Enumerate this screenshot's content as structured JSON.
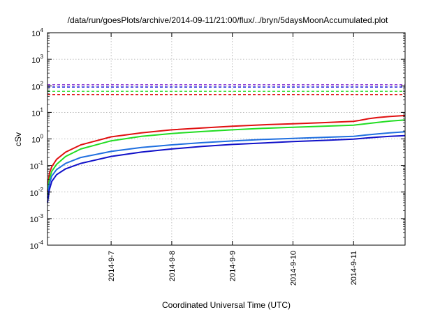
{
  "chart_data": {
    "type": "line",
    "title": "/data/run/goesPlots/archive/2014-09-11/21:00/flux/../bryn/5daysMoonAccumulated.plot",
    "xlabel": "Coordinated Universal Time (UTC)",
    "ylabel": "cSv",
    "y_scale": "log",
    "ylim": [
      0.0001,
      10000
    ],
    "y_ticks": [
      {
        "value": 0.0001,
        "base": "10",
        "exp": "-4"
      },
      {
        "value": 0.001,
        "base": "10",
        "exp": "-3"
      },
      {
        "value": 0.01,
        "base": "10",
        "exp": "-2"
      },
      {
        "value": 0.1,
        "base": "10",
        "exp": "-1"
      },
      {
        "value": 1,
        "base": "10",
        "exp": "0"
      },
      {
        "value": 10,
        "base": "10",
        "exp": "1"
      },
      {
        "value": 100,
        "base": "10",
        "exp": "2"
      },
      {
        "value": 1000,
        "base": "10",
        "exp": "3"
      },
      {
        "value": 10000,
        "base": "10",
        "exp": "4"
      }
    ],
    "xlim": [
      5.95,
      11.85
    ],
    "x_ticks": [
      {
        "value": 7,
        "label": "2014-9-7"
      },
      {
        "value": 8,
        "label": "2014-9-8"
      },
      {
        "value": 9,
        "label": "2014-9-9"
      },
      {
        "value": 10,
        "label": "2014-9-10"
      },
      {
        "value": 11,
        "label": "2014-9-11"
      }
    ],
    "grid": true,
    "legend": "none",
    "thresholds": [
      {
        "value": 110,
        "color": "#7f1fd0"
      },
      {
        "value": 90,
        "color": "#1a1adf"
      },
      {
        "value": 62,
        "color": "#22dd22"
      },
      {
        "value": 47,
        "color": "#e01010"
      }
    ],
    "series": [
      {
        "color": "#e01010",
        "x": [
          5.95,
          5.98,
          6.02,
          6.1,
          6.25,
          6.5,
          7.0,
          7.5,
          8.0,
          8.5,
          9.0,
          9.5,
          10.0,
          10.5,
          11.0,
          11.1,
          11.25,
          11.4,
          11.6,
          11.85
        ],
        "y": [
          0.01,
          0.05,
          0.09,
          0.17,
          0.32,
          0.6,
          1.2,
          1.7,
          2.2,
          2.6,
          3.0,
          3.4,
          3.7,
          4.1,
          4.6,
          5.0,
          5.8,
          6.4,
          7.0,
          7.6
        ]
      },
      {
        "color": "#22dd22",
        "x": [
          5.95,
          5.98,
          6.02,
          6.1,
          6.25,
          6.5,
          7.0,
          7.5,
          8.0,
          8.5,
          9.0,
          9.5,
          10.0,
          10.5,
          11.0,
          11.2,
          11.4,
          11.6,
          11.85
        ],
        "y": [
          0.008,
          0.03,
          0.06,
          0.11,
          0.22,
          0.42,
          0.85,
          1.25,
          1.6,
          1.9,
          2.2,
          2.5,
          2.75,
          3.0,
          3.3,
          3.7,
          4.2,
          4.7,
          5.2
        ]
      },
      {
        "color": "#1f6fe0",
        "x": [
          5.95,
          5.98,
          6.02,
          6.1,
          6.25,
          6.5,
          7.0,
          7.5,
          8.0,
          8.5,
          9.0,
          9.5,
          10.0,
          10.5,
          11.0,
          11.2,
          11.4,
          11.6,
          11.85
        ],
        "y": [
          0.006,
          0.02,
          0.04,
          0.07,
          0.12,
          0.2,
          0.34,
          0.48,
          0.6,
          0.72,
          0.84,
          0.95,
          1.05,
          1.15,
          1.25,
          1.4,
          1.55,
          1.7,
          1.85
        ]
      },
      {
        "color": "#1010c8",
        "x": [
          5.95,
          5.98,
          6.02,
          6.1,
          6.25,
          6.5,
          7.0,
          7.5,
          8.0,
          8.5,
          9.0,
          9.5,
          10.0,
          10.5,
          11.0,
          11.2,
          11.4,
          11.6,
          11.85
        ],
        "y": [
          0.004,
          0.012,
          0.025,
          0.045,
          0.075,
          0.12,
          0.22,
          0.32,
          0.42,
          0.52,
          0.62,
          0.7,
          0.8,
          0.88,
          0.98,
          1.08,
          1.17,
          1.25,
          1.33
        ]
      }
    ]
  }
}
